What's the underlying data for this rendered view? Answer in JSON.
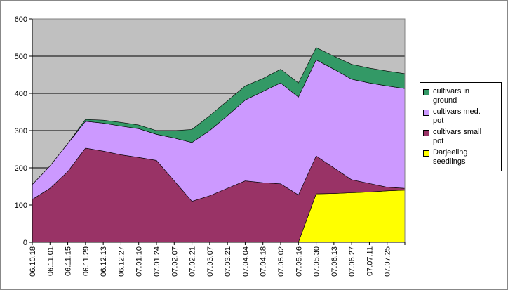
{
  "chart_data": {
    "type": "stacked_area",
    "categories": [
      "06.10.18",
      "06.11.01",
      "06.11.15",
      "06.11.29",
      "06.12.13",
      "06.12.27",
      "07.01.10",
      "07.01.24",
      "07.02.07",
      "07.02.21",
      "07.03.07",
      "07.03.21",
      "07.04.04",
      "07.04.18",
      "07.05.02",
      "07.05.16",
      "07.05.30",
      "07.06.13",
      "07.06.27",
      "07.07.11",
      "07.07.25",
      null
    ],
    "series": [
      {
        "name": "Darjeeling seedlings",
        "color": "#ffff00",
        "values": [
          0,
          0,
          0,
          0,
          0,
          0,
          0,
          0,
          0,
          0,
          0,
          0,
          0,
          0,
          0,
          0,
          130,
          131,
          133,
          135,
          138,
          140
        ]
      },
      {
        "name": "cultivars small pot",
        "color": "#993366",
        "values": [
          115,
          145,
          190,
          253,
          245,
          235,
          228,
          220,
          165,
          110,
          125,
          145,
          165,
          160,
          157,
          127,
          102,
          69,
          35,
          23,
          10,
          5
        ]
      },
      {
        "name": "cultivars med. pot",
        "color": "#cc99ff",
        "values": [
          40,
          60,
          75,
          72,
          75,
          77,
          77,
          70,
          115,
          158,
          175,
          195,
          217,
          245,
          271,
          263,
          258,
          265,
          270,
          270,
          272,
          268
        ]
      },
      {
        "name": "cultivars in ground",
        "color": "#339966",
        "values": [
          0,
          0,
          0,
          5,
          8,
          10,
          10,
          10,
          20,
          35,
          40,
          40,
          38,
          35,
          37,
          38,
          33,
          35,
          40,
          40,
          40,
          40
        ]
      }
    ],
    "ylim": [
      0,
      600
    ],
    "yticks": [
      0,
      100,
      200,
      300,
      400,
      500,
      600
    ],
    "grid": true,
    "legend": "right"
  }
}
